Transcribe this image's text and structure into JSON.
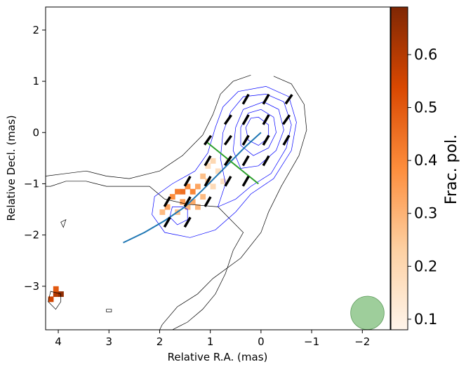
{
  "chart_data": {
    "type": "heatmap",
    "title": "",
    "xlabel": "Relative R.A. (mas)",
    "ylabel": "Relative Decl. (mas)",
    "xlim": [
      4.25,
      -2.55
    ],
    "ylim": [
      -3.85,
      2.45
    ],
    "x_ticks": [
      4,
      3,
      2,
      1,
      0,
      -1,
      -2
    ],
    "x_tick_labels": [
      "4",
      "3",
      "2",
      "1",
      "0",
      "−1",
      "−2"
    ],
    "y_ticks": [
      2,
      1,
      0,
      -1,
      -2,
      -3
    ],
    "y_tick_labels": [
      "2",
      "1",
      "0",
      "−1",
      "−2",
      "−3"
    ],
    "colorbar": {
      "label": "Frac. pol.",
      "range": [
        0.08,
        0.69
      ],
      "ticks": [
        0.1,
        0.2,
        0.3,
        0.4,
        0.5,
        0.6
      ],
      "tick_labels": [
        "0.1",
        "0.2",
        "0.3",
        "0.4",
        "0.5",
        "0.6"
      ],
      "colormap": "Oranges",
      "colors": [
        "#fff5eb",
        "#fdd0a2",
        "#fd8d3c",
        "#d94801",
        "#7f2704"
      ]
    },
    "polarization_pixels": [
      {
        "x": 1.05,
        "y": -0.65,
        "v": 0.18
      },
      {
        "x": 0.95,
        "y": -0.55,
        "v": 0.2
      },
      {
        "x": 1.15,
        "y": -0.85,
        "v": 0.27
      },
      {
        "x": 1.05,
        "y": -0.95,
        "v": 0.25
      },
      {
        "x": 1.25,
        "y": -1.05,
        "v": 0.33
      },
      {
        "x": 1.35,
        "y": -1.15,
        "v": 0.4
      },
      {
        "x": 1.45,
        "y": -1.05,
        "v": 0.38
      },
      {
        "x": 1.55,
        "y": -1.15,
        "v": 0.45
      },
      {
        "x": 1.65,
        "y": -1.15,
        "v": 0.42
      },
      {
        "x": 1.75,
        "y": -1.25,
        "v": 0.38
      },
      {
        "x": 1.55,
        "y": -1.35,
        "v": 0.35
      },
      {
        "x": 1.45,
        "y": -1.45,
        "v": 0.3
      },
      {
        "x": 1.85,
        "y": -1.45,
        "v": 0.33
      },
      {
        "x": 1.95,
        "y": -1.55,
        "v": 0.28
      },
      {
        "x": 1.65,
        "y": -1.55,
        "v": 0.26
      },
      {
        "x": 1.35,
        "y": -1.35,
        "v": 0.32
      },
      {
        "x": 1.25,
        "y": -1.45,
        "v": 0.29
      },
      {
        "x": 1.15,
        "y": -1.25,
        "v": 0.28
      },
      {
        "x": 0.85,
        "y": -0.75,
        "v": 0.17
      },
      {
        "x": 0.75,
        "y": -0.95,
        "v": 0.16
      },
      {
        "x": 0.95,
        "y": -1.05,
        "v": 0.19
      },
      {
        "x": 0.65,
        "y": -0.55,
        "v": 0.12
      },
      {
        "x": 4.05,
        "y": -3.15,
        "v": 0.6
      },
      {
        "x": 4.15,
        "y": -3.25,
        "v": 0.55
      },
      {
        "x": 3.95,
        "y": -3.15,
        "v": 0.66
      },
      {
        "x": 4.05,
        "y": -3.05,
        "v": 0.5
      }
    ],
    "evpa_vectors": [
      {
        "x": -0.55,
        "y": 0.65,
        "angle_deg": 35
      },
      {
        "x": -0.1,
        "y": 0.65,
        "angle_deg": 30
      },
      {
        "x": 0.3,
        "y": 0.65,
        "angle_deg": 30
      },
      {
        "x": -0.5,
        "y": 0.25,
        "angle_deg": 35
      },
      {
        "x": -0.1,
        "y": 0.25,
        "angle_deg": 30
      },
      {
        "x": 0.3,
        "y": 0.25,
        "angle_deg": 30
      },
      {
        "x": 0.65,
        "y": 0.25,
        "angle_deg": 35
      },
      {
        "x": -0.5,
        "y": -0.15,
        "angle_deg": 30
      },
      {
        "x": -0.1,
        "y": -0.15,
        "angle_deg": 30
      },
      {
        "x": 0.3,
        "y": -0.15,
        "angle_deg": 30
      },
      {
        "x": 0.65,
        "y": -0.15,
        "angle_deg": 35
      },
      {
        "x": 1.05,
        "y": -0.15,
        "angle_deg": 35
      },
      {
        "x": -0.1,
        "y": -0.55,
        "angle_deg": 30
      },
      {
        "x": 0.3,
        "y": -0.55,
        "angle_deg": 30
      },
      {
        "x": 0.65,
        "y": -0.55,
        "angle_deg": 35
      },
      {
        "x": 1.05,
        "y": -0.55,
        "angle_deg": 30
      },
      {
        "x": 0.3,
        "y": -0.95,
        "angle_deg": 30
      },
      {
        "x": 0.65,
        "y": -0.95,
        "angle_deg": 30
      },
      {
        "x": 1.05,
        "y": -0.95,
        "angle_deg": 30
      },
      {
        "x": 1.45,
        "y": -0.95,
        "angle_deg": 30
      },
      {
        "x": 1.85,
        "y": -1.35,
        "angle_deg": 30
      },
      {
        "x": 1.45,
        "y": -1.35,
        "angle_deg": 30
      },
      {
        "x": 1.85,
        "y": -1.75,
        "angle_deg": 30
      },
      {
        "x": 1.45,
        "y": -1.75,
        "angle_deg": 30
      },
      {
        "x": 1.05,
        "y": -1.35,
        "angle_deg": 30
      }
    ],
    "jet_ridge_line": {
      "color": "#1f77b4",
      "points": [
        [
          2.72,
          -2.15
        ],
        [
          2.3,
          -1.95
        ],
        [
          1.9,
          -1.72
        ],
        [
          1.5,
          -1.45
        ],
        [
          1.15,
          -1.12
        ],
        [
          0.85,
          -0.82
        ],
        [
          0.55,
          -0.52
        ],
        [
          0.3,
          -0.27
        ],
        [
          0.0,
          0.0
        ]
      ]
    },
    "transverse_line": {
      "color": "#2ca02c",
      "points": [
        [
          1.08,
          -0.18
        ],
        [
          0.05,
          -1.0
        ]
      ]
    },
    "contours": {
      "outer_color": "#000000",
      "inner_color": "#0000ff",
      "outer": [
        [
          -0.25,
          1.1
        ],
        [
          -0.6,
          0.95
        ],
        [
          -0.85,
          0.55
        ],
        [
          -0.9,
          0.05
        ],
        [
          -0.75,
          -0.45
        ],
        [
          -0.4,
          -1.05
        ],
        [
          -0.15,
          -1.55
        ],
        [
          0.0,
          -1.95
        ],
        [
          0.4,
          -2.45
        ],
        [
          0.95,
          -2.85
        ],
        [
          1.25,
          -3.15
        ],
        [
          1.65,
          -3.4
        ],
        [
          1.95,
          -3.75
        ],
        [
          2.0,
          -3.85
        ],
        [
          1.75,
          -3.85
        ],
        [
          1.45,
          -3.7
        ],
        [
          1.15,
          -3.45
        ],
        [
          0.9,
          -3.15
        ],
        [
          0.7,
          -2.75
        ],
        [
          0.55,
          -2.3
        ],
        [
          0.35,
          -1.95
        ],
        [
          0.85,
          -1.45
        ],
        [
          1.45,
          -1.4
        ],
        [
          1.9,
          -1.3
        ],
        [
          2.2,
          -1.05
        ],
        [
          2.65,
          -1.05
        ],
        [
          3.05,
          -1.05
        ],
        [
          3.45,
          -0.95
        ],
        [
          3.85,
          -0.95
        ],
        [
          4.15,
          -1.05
        ],
        [
          4.25,
          -1.05
        ],
        [
          4.25,
          -0.85
        ],
        [
          3.85,
          -0.8
        ],
        [
          3.45,
          -0.75
        ],
        [
          3.05,
          -0.85
        ],
        [
          2.6,
          -0.9
        ],
        [
          2.0,
          -0.75
        ],
        [
          1.55,
          -0.45
        ],
        [
          1.15,
          -0.05
        ],
        [
          0.95,
          0.35
        ],
        [
          0.8,
          0.75
        ],
        [
          0.55,
          1.0
        ],
        [
          0.2,
          1.12
        ]
      ],
      "inner_levels": [
        [
          [
            -0.1,
            0.9
          ],
          [
            -0.55,
            0.7
          ],
          [
            -0.7,
            0.2
          ],
          [
            -0.6,
            -0.35
          ],
          [
            -0.25,
            -0.9
          ],
          [
            0.2,
            -1.2
          ],
          [
            0.5,
            -1.55
          ],
          [
            0.9,
            -1.9
          ],
          [
            1.4,
            -2.05
          ],
          [
            1.9,
            -1.95
          ],
          [
            2.15,
            -1.6
          ],
          [
            2.1,
            -1.25
          ],
          [
            1.75,
            -1.0
          ],
          [
            1.3,
            -0.75
          ],
          [
            1.05,
            -0.4
          ],
          [
            0.9,
            0.1
          ],
          [
            0.75,
            0.5
          ],
          [
            0.45,
            0.8
          ]
        ],
        [
          [
            -0.1,
            0.75
          ],
          [
            -0.45,
            0.6
          ],
          [
            -0.6,
            0.15
          ],
          [
            -0.5,
            -0.3
          ],
          [
            -0.2,
            -0.8
          ],
          [
            0.2,
            -1.05
          ],
          [
            0.5,
            -1.3
          ],
          [
            0.85,
            -1.45
          ],
          [
            0.7,
            -1.0
          ],
          [
            0.8,
            -0.5
          ],
          [
            0.75,
            0.0
          ],
          [
            0.6,
            0.4
          ],
          [
            0.35,
            0.7
          ]
        ],
        [
          [
            -0.05,
            0.6
          ],
          [
            -0.35,
            0.45
          ],
          [
            -0.45,
            0.05
          ],
          [
            -0.3,
            -0.35
          ],
          [
            0.05,
            -0.65
          ],
          [
            0.4,
            -0.7
          ],
          [
            0.55,
            -0.35
          ],
          [
            0.5,
            0.1
          ],
          [
            0.35,
            0.45
          ]
        ],
        [
          [
            0.0,
            0.45
          ],
          [
            -0.25,
            0.3
          ],
          [
            -0.3,
            0.0
          ],
          [
            -0.15,
            -0.3
          ],
          [
            0.15,
            -0.45
          ],
          [
            0.4,
            -0.25
          ],
          [
            0.4,
            0.1
          ],
          [
            0.25,
            0.38
          ]
        ],
        [
          [
            0.05,
            0.3
          ],
          [
            -0.15,
            0.15
          ],
          [
            -0.15,
            -0.1
          ],
          [
            0.05,
            -0.25
          ],
          [
            0.25,
            -0.15
          ],
          [
            0.3,
            0.1
          ],
          [
            0.2,
            0.28
          ]
        ],
        [
          [
            1.55,
            -1.45
          ],
          [
            1.75,
            -1.45
          ],
          [
            1.8,
            -1.65
          ],
          [
            1.65,
            -1.8
          ],
          [
            1.45,
            -1.7
          ],
          [
            1.45,
            -1.5
          ]
        ]
      ],
      "islands": [
        [
          [
            3.95,
            -3.15
          ],
          [
            4.15,
            -3.1
          ],
          [
            4.2,
            -3.3
          ],
          [
            4.05,
            -3.45
          ],
          [
            3.95,
            -3.3
          ]
        ],
        [
          [
            3.85,
            -1.7
          ],
          [
            3.95,
            -1.75
          ],
          [
            3.9,
            -1.85
          ]
        ],
        [
          [
            3.05,
            -3.45
          ],
          [
            2.95,
            -3.45
          ],
          [
            2.95,
            -3.5
          ],
          [
            3.05,
            -3.5
          ]
        ]
      ]
    },
    "beam": {
      "x": -2.1,
      "y": -3.52,
      "radius": 0.33,
      "color": "#93c990"
    }
  }
}
